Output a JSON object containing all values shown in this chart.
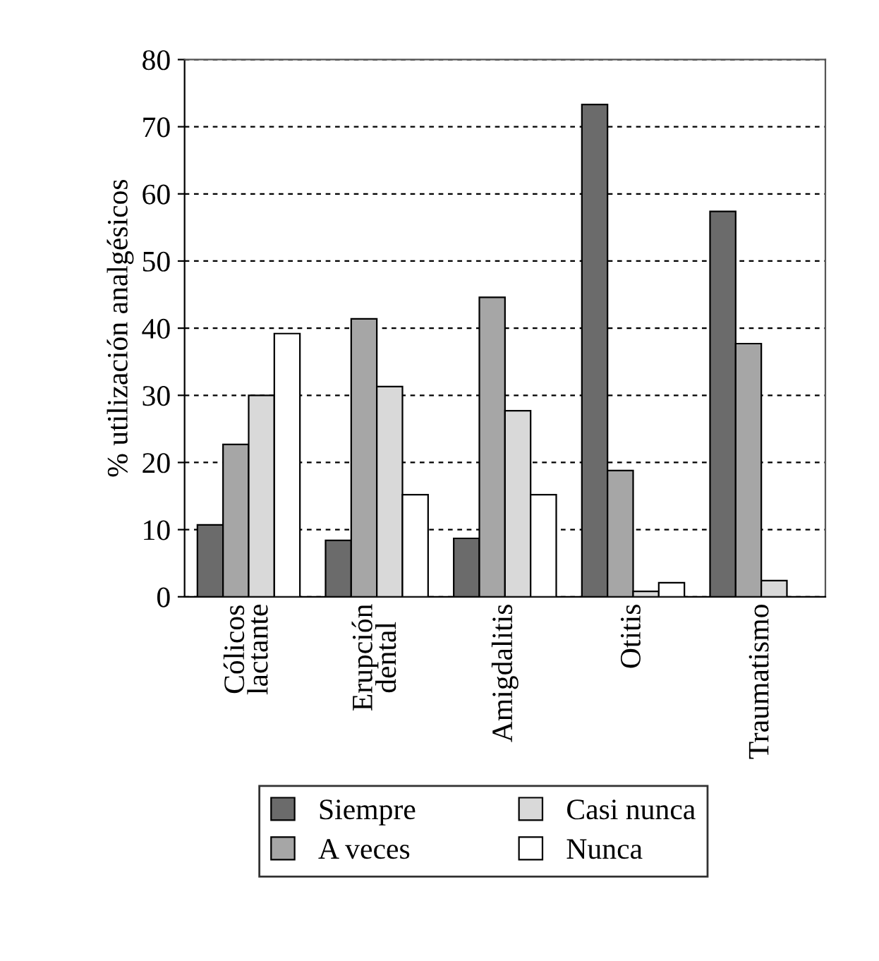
{
  "chart_data": {
    "type": "bar",
    "ylabel": "% utilización analgésicos",
    "categories": [
      "Cólicos\nlactante",
      "Erupción\ndental",
      "Amigdalitis",
      "Otitis",
      "Traumatismo"
    ],
    "series": [
      {
        "name": "Siempre",
        "color": "#6b6b6b",
        "values": [
          10.7,
          8.4,
          8.7,
          73.3,
          57.4
        ]
      },
      {
        "name": "A veces",
        "color": "#a6a6a6",
        "values": [
          22.7,
          41.4,
          44.6,
          18.8,
          37.7
        ]
      },
      {
        "name": "Casi nunca",
        "color": "#d9d9d9",
        "values": [
          30,
          31.3,
          27.7,
          0.8,
          2.4
        ]
      },
      {
        "name": "Nunca",
        "color": "#ffffff",
        "values": [
          39.2,
          15.2,
          15.2,
          2.1,
          null
        ]
      }
    ],
    "ylim": [
      0,
      80
    ],
    "yticks": [
      0,
      10,
      20,
      30,
      40,
      50,
      60,
      70,
      80
    ],
    "grid": "y",
    "legend": "bottom"
  }
}
